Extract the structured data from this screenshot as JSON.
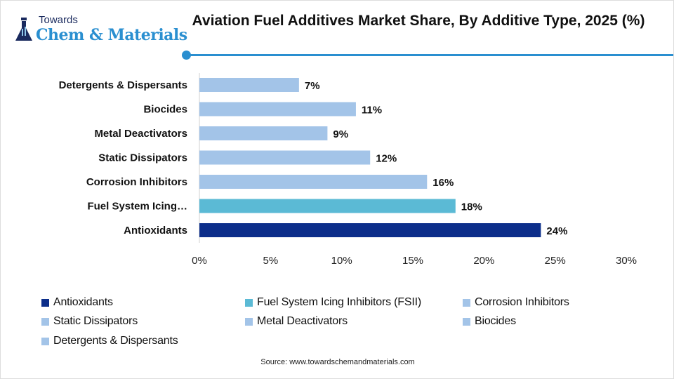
{
  "logo": {
    "line1": "Towards",
    "line2": "Chem & Materials"
  },
  "title": "Aviation Fuel Additives Market Share, By Additive Type, 2025 (%)",
  "source": "Source: www.towardschemandmaterials.com",
  "chart_data": {
    "type": "bar",
    "orientation": "horizontal",
    "categories": [
      "Detergents & Dispersants",
      "Biocides",
      "Metal Deactivators",
      "Static Dissipators",
      "Corrosion Inhibitors",
      "Fuel System Icing…",
      "Antioxidants"
    ],
    "values": [
      7,
      11,
      9,
      12,
      16,
      18,
      24
    ],
    "data_labels": [
      "7%",
      "11%",
      "9%",
      "12%",
      "16%",
      "18%",
      "24%"
    ],
    "colors": [
      "#a3c4e8",
      "#a3c4e8",
      "#a3c4e8",
      "#a3c4e8",
      "#a3c4e8",
      "#5bbad5",
      "#0c2e8a"
    ],
    "xlim": [
      0,
      30
    ],
    "xticks": [
      "0%",
      "5%",
      "10%",
      "15%",
      "20%",
      "25%",
      "30%"
    ],
    "grid": false,
    "legend_position": "bottom",
    "legend": [
      {
        "label": "Antioxidants",
        "color": "#0c2e8a"
      },
      {
        "label": "Fuel System Icing Inhibitors (FSII)",
        "color": "#5bbad5"
      },
      {
        "label": "Corrosion Inhibitors",
        "color": "#a3c4e8"
      },
      {
        "label": "Static Dissipators",
        "color": "#a3c4e8"
      },
      {
        "label": "Metal Deactivators",
        "color": "#a3c4e8"
      },
      {
        "label": "Biocides",
        "color": "#a3c4e8"
      },
      {
        "label": "Detergents & Dispersants",
        "color": "#a3c4e8"
      }
    ]
  }
}
